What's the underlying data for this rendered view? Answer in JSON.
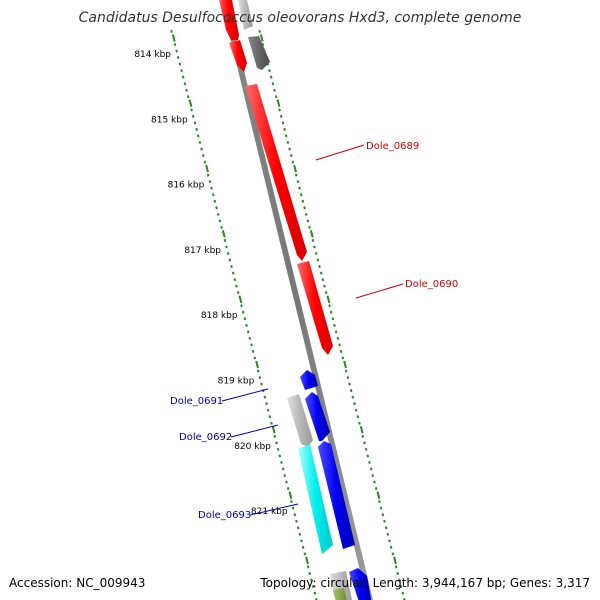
{
  "title": "Candidatus Desulfococcus oleovorans Hxd3, complete genome",
  "footer": {
    "accession": "Accession: NC_009943",
    "stats": "Topology: circular; Length: 3,944,167 bp; Genes: 3,317"
  },
  "colors": {
    "red": "#ff0000",
    "blue": "#0000ee",
    "cyan": "#00eeee",
    "gray": "#b3b3b3",
    "dark_gray": "#666666",
    "tick_green": "#228B22",
    "label_red": "#cc0000",
    "label_blue": "#0000aa"
  },
  "ticks": [
    {
      "kbp": 814,
      "label": "814 kbp"
    },
    {
      "kbp": 815,
      "label": "815 kbp"
    },
    {
      "kbp": 816,
      "label": "816 kbp"
    },
    {
      "kbp": 817,
      "label": "817 kbp"
    },
    {
      "kbp": 818,
      "label": "818 kbp"
    },
    {
      "kbp": 819,
      "label": "819 kbp"
    },
    {
      "kbp": 820,
      "label": "820 kbp"
    },
    {
      "kbp": 821,
      "label": "821 kbp"
    }
  ],
  "genes": [
    {
      "name": "Dole_0689",
      "labeled": true,
      "color": "red"
    },
    {
      "name": "Dole_0690",
      "labeled": true,
      "color": "red"
    },
    {
      "name": "Dole_0691",
      "labeled": true,
      "color": "blue"
    },
    {
      "name": "Dole_0692",
      "labeled": true,
      "color": "blue"
    },
    {
      "name": "Dole_0693",
      "labeled": true,
      "color": "blue"
    }
  ]
}
